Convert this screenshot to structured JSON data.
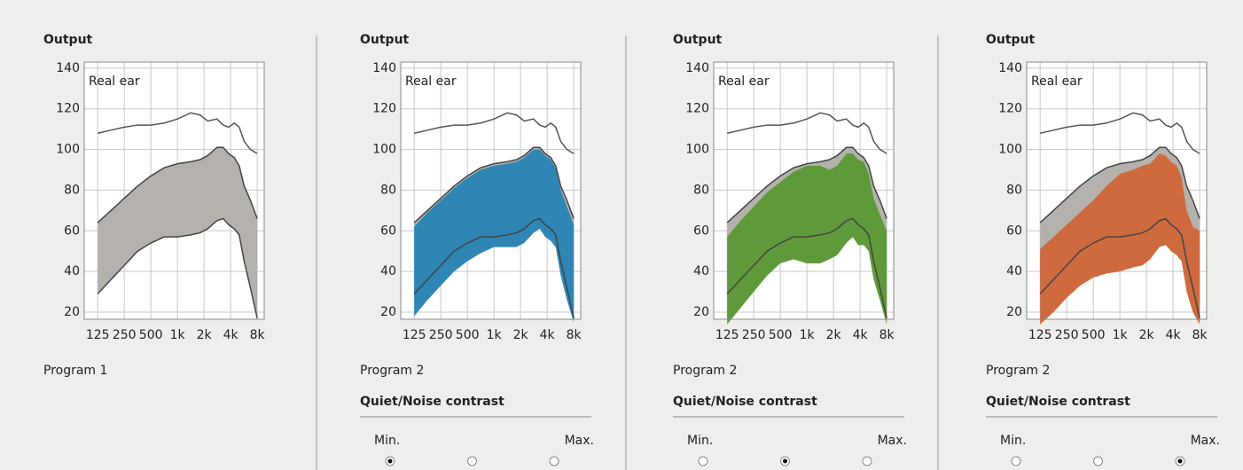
{
  "chart_data": [
    {
      "type": "band",
      "title": "Output",
      "annotation": "Real ear",
      "x": [
        125,
        177,
        250,
        354,
        500,
        707,
        1000,
        1414,
        1800,
        2200,
        2800,
        3300,
        3800,
        4400,
        5000,
        5700,
        6700,
        8000
      ],
      "xlim": [
        88,
        9600
      ],
      "log_x": true,
      "ylim": [
        16.5,
        143
      ],
      "grid": true,
      "xticks": [
        125,
        250,
        500,
        {
          "value": 1000,
          "label": "1k"
        },
        {
          "value": 2000,
          "label": "2k"
        },
        {
          "value": 4000,
          "label": "4k"
        },
        {
          "value": 8000,
          "label": "8k"
        }
      ],
      "yticks": [
        20,
        40,
        60,
        80,
        100,
        120,
        140
      ],
      "line": {
        "color": "#555555",
        "values": [
          108,
          109.5,
          111,
          112,
          112,
          113,
          115,
          118,
          117,
          114,
          115,
          112,
          111,
          113,
          111,
          104,
          100,
          98
        ]
      },
      "series": [
        {
          "color": "#b5b2ae",
          "upper": [
            64,
            70,
            76,
            82,
            87,
            91,
            93,
            94,
            95,
            97,
            101,
            101,
            98,
            96,
            92,
            82,
            75,
            66
          ],
          "lower": [
            29,
            36,
            43,
            50,
            54,
            57,
            57,
            58,
            59,
            61,
            65,
            66,
            63,
            61,
            58,
            45,
            32,
            17
          ]
        }
      ]
    },
    {
      "type": "band",
      "title": "Output",
      "annotation": "Real ear",
      "x": [
        125,
        177,
        250,
        354,
        500,
        707,
        1000,
        1414,
        1800,
        2200,
        2800,
        3300,
        3800,
        4400,
        5000,
        5700,
        6700,
        8000
      ],
      "xlim": [
        88,
        9600
      ],
      "log_x": true,
      "ylim": [
        16.5,
        143
      ],
      "grid": true,
      "xticks": [
        125,
        250,
        500,
        {
          "value": 1000,
          "label": "1k"
        },
        {
          "value": 2000,
          "label": "2k"
        },
        {
          "value": 4000,
          "label": "4k"
        },
        {
          "value": 8000,
          "label": "8k"
        }
      ],
      "yticks": [
        20,
        40,
        60,
        80,
        100,
        120,
        140
      ],
      "line": {
        "color": "#555555",
        "values": [
          108,
          109.5,
          111,
          112,
          112,
          113,
          115,
          118,
          117,
          114,
          115,
          112,
          111,
          113,
          111,
          104,
          100,
          98
        ]
      },
      "series": [
        {
          "color": "#b5b2ae",
          "upper": [
            64,
            70,
            76,
            82,
            87,
            91,
            93,
            94,
            95,
            97,
            101,
            101,
            98,
            96,
            92,
            82,
            75,
            66
          ],
          "lower": [
            29,
            36,
            43,
            50,
            54,
            57,
            57,
            58,
            59,
            61,
            65,
            66,
            63,
            61,
            58,
            45,
            32,
            17
          ]
        },
        {
          "color": "#2f86b5",
          "upper": [
            62,
            69,
            75,
            81,
            86,
            90,
            92,
            93,
            94,
            96,
            100,
            100,
            97,
            95,
            91,
            80,
            72,
            63
          ],
          "lower": [
            18,
            26,
            33,
            40,
            45,
            49,
            52,
            52,
            52,
            54,
            59,
            61,
            57,
            55,
            52,
            38,
            26,
            15
          ]
        }
      ]
    },
    {
      "type": "band",
      "title": "Output",
      "annotation": "Real ear",
      "x": [
        125,
        177,
        250,
        354,
        500,
        707,
        1000,
        1414,
        1800,
        2200,
        2800,
        3300,
        3800,
        4400,
        5000,
        5700,
        6700,
        8000
      ],
      "xlim": [
        88,
        9600
      ],
      "log_x": true,
      "ylim": [
        16.5,
        143
      ],
      "grid": true,
      "xticks": [
        125,
        250,
        500,
        {
          "value": 1000,
          "label": "1k"
        },
        {
          "value": 2000,
          "label": "2k"
        },
        {
          "value": 4000,
          "label": "4k"
        },
        {
          "value": 8000,
          "label": "8k"
        }
      ],
      "yticks": [
        20,
        40,
        60,
        80,
        100,
        120,
        140
      ],
      "line": {
        "color": "#555555",
        "values": [
          108,
          109.5,
          111,
          112,
          112,
          113,
          115,
          118,
          117,
          114,
          115,
          112,
          111,
          113,
          111,
          104,
          100,
          98
        ]
      },
      "series": [
        {
          "color": "#b5b2ae",
          "upper": [
            64,
            70,
            76,
            82,
            87,
            91,
            93,
            94,
            95,
            97,
            101,
            101,
            98,
            96,
            92,
            82,
            75,
            66
          ],
          "lower": [
            29,
            36,
            43,
            50,
            54,
            57,
            57,
            58,
            59,
            61,
            65,
            66,
            63,
            61,
            58,
            45,
            32,
            17
          ]
        },
        {
          "color": "#5e9a3a",
          "upper": [
            57,
            65,
            72,
            79,
            84,
            89,
            92,
            92,
            90,
            92,
            98,
            98,
            95,
            94,
            88,
            76,
            68,
            60
          ],
          "lower": [
            14,
            22,
            30,
            38,
            44,
            46,
            44,
            44,
            46,
            48,
            54,
            57,
            53,
            53,
            50,
            36,
            26,
            14
          ]
        }
      ]
    },
    {
      "type": "band",
      "title": "Output",
      "annotation": "Real ear",
      "x": [
        125,
        177,
        250,
        354,
        500,
        707,
        1000,
        1414,
        1800,
        2200,
        2800,
        3300,
        3800,
        4400,
        5000,
        5700,
        6700,
        8000
      ],
      "xlim": [
        88,
        9600
      ],
      "log_x": true,
      "ylim": [
        16.5,
        143
      ],
      "grid": true,
      "xticks": [
        125,
        250,
        500,
        {
          "value": 1000,
          "label": "1k"
        },
        {
          "value": 2000,
          "label": "2k"
        },
        {
          "value": 4000,
          "label": "4k"
        },
        {
          "value": 8000,
          "label": "8k"
        }
      ],
      "yticks": [
        20,
        40,
        60,
        80,
        100,
        120,
        140
      ],
      "line": {
        "color": "#555555",
        "values": [
          108,
          109.5,
          111,
          112,
          112,
          113,
          115,
          118,
          117,
          114,
          115,
          112,
          111,
          113,
          111,
          104,
          100,
          98
        ]
      },
      "series": [
        {
          "color": "#b5b2ae",
          "upper": [
            64,
            70,
            76,
            82,
            87,
            91,
            93,
            94,
            95,
            97,
            101,
            101,
            98,
            96,
            92,
            82,
            75,
            66
          ],
          "lower": [
            29,
            36,
            43,
            50,
            54,
            57,
            57,
            58,
            59,
            61,
            65,
            66,
            63,
            61,
            58,
            45,
            32,
            17
          ]
        },
        {
          "color": "#cf6a3e",
          "upper": [
            51,
            57,
            63,
            69,
            75,
            82,
            88,
            90,
            92,
            93,
            98,
            97,
            94,
            92,
            86,
            70,
            62,
            60
          ],
          "lower": [
            14,
            20,
            27,
            33,
            37,
            39,
            40,
            42,
            43,
            46,
            52,
            53,
            50,
            48,
            45,
            30,
            20,
            14
          ]
        }
      ]
    }
  ],
  "panels": [
    {
      "program": "Program 1"
    },
    {
      "program": "Program 2",
      "contrast": {
        "title": "Quiet/Noise contrast",
        "min": "Min.",
        "max": "Max.",
        "options": 3,
        "selected": 0
      }
    },
    {
      "program": "Program 2",
      "contrast": {
        "title": "Quiet/Noise contrast",
        "min": "Min.",
        "max": "Max.",
        "options": 3,
        "selected": 1
      }
    },
    {
      "program": "Program 2",
      "contrast": {
        "title": "Quiet/Noise contrast",
        "min": "Min.",
        "max": "Max.",
        "options": 3,
        "selected": 2
      }
    }
  ]
}
